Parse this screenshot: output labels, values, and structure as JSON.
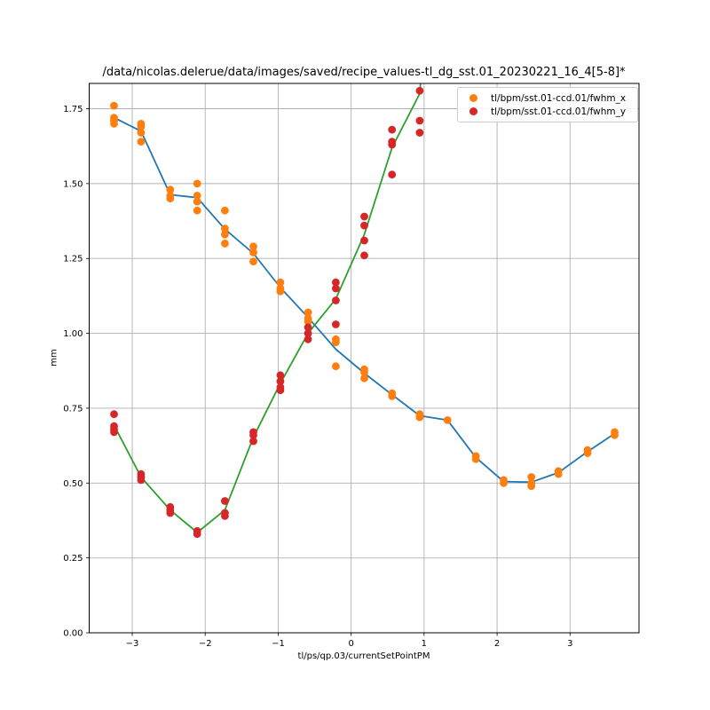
{
  "title": "/data/nicolas.delerue/data/images/saved/recipe_values-tl_dg_sst.01_20230221_16_4[5-8]*",
  "legend": {
    "items": [
      {
        "label": "tl/bpm/sst.01-ccd.01/fwhm_x",
        "color": "#ff7f0e"
      },
      {
        "label": "tl/bpm/sst.01-ccd.01/fwhm_y",
        "color": "#d62728"
      }
    ]
  },
  "colors": {
    "fwhm_x_marker": "#ff7f0e",
    "fwhm_y_marker": "#d62728",
    "fwhm_x_mean_line": "#1f77b4",
    "fwhm_y_mean_line": "#2ca02c",
    "gridline": "#b0b0b0",
    "spine": "#000000"
  },
  "chart_data": {
    "type": "scatter",
    "title": "/data/nicolas.delerue/data/images/saved/recipe_values-tl_dg_sst.01_20230221_16_4[5-8]*",
    "xlabel": "tl/ps/qp.03/currentSetPointPM",
    "ylabel": "mm",
    "xlim": [
      -3.59,
      3.945
    ],
    "ylim": [
      0,
      1.8345
    ],
    "grid": true,
    "legend_position": "upper right",
    "x_ticks": [
      {
        "v": -3,
        "label": "−3"
      },
      {
        "v": -2,
        "label": "−2"
      },
      {
        "v": -1,
        "label": "−1"
      },
      {
        "v": 0,
        "label": "0"
      },
      {
        "v": 1,
        "label": "1"
      },
      {
        "v": 2,
        "label": "2"
      },
      {
        "v": 3,
        "label": "3"
      }
    ],
    "y_ticks": [
      {
        "v": 0.0,
        "label": "0.00"
      },
      {
        "v": 0.25,
        "label": "0.25"
      },
      {
        "v": 0.5,
        "label": "0.50"
      },
      {
        "v": 0.75,
        "label": "0.75"
      },
      {
        "v": 1.0,
        "label": "1.00"
      },
      {
        "v": 1.25,
        "label": "1.25"
      },
      {
        "v": 1.5,
        "label": "1.50"
      },
      {
        "v": 1.75,
        "label": "1.75"
      }
    ],
    "series": [
      {
        "key": "fwhm-x-mean-line",
        "name": "fwhm_x mean line",
        "type": "line",
        "color": "#1f77b4",
        "points": [
          [
            -3.25,
            1.72
          ],
          [
            -2.88,
            1.675
          ],
          [
            -2.48,
            1.463
          ],
          [
            -2.11,
            1.453
          ],
          [
            -1.73,
            1.348
          ],
          [
            -1.34,
            1.267
          ],
          [
            -0.97,
            1.153
          ],
          [
            -0.59,
            1.053
          ],
          [
            -0.21,
            0.947
          ],
          [
            0.18,
            0.867
          ],
          [
            0.56,
            0.795
          ],
          [
            0.94,
            0.725
          ],
          [
            1.32,
            0.71
          ],
          [
            1.71,
            0.585
          ],
          [
            2.09,
            0.505
          ],
          [
            2.47,
            0.503
          ],
          [
            2.84,
            0.535
          ],
          [
            3.24,
            0.605
          ],
          [
            3.61,
            0.665
          ]
        ]
      },
      {
        "key": "fwhm-y-mean-line",
        "name": "fwhm_y mean line",
        "type": "line",
        "color": "#2ca02c",
        "points": [
          [
            -3.25,
            0.693
          ],
          [
            -2.88,
            0.52
          ],
          [
            -2.48,
            0.41
          ],
          [
            -2.11,
            0.335
          ],
          [
            -1.73,
            0.41
          ],
          [
            -1.34,
            0.653
          ],
          [
            -0.97,
            0.833
          ],
          [
            -0.59,
            1.0
          ],
          [
            -0.21,
            1.115
          ],
          [
            0.18,
            1.33
          ],
          [
            0.56,
            1.62
          ],
          [
            0.94,
            1.8
          ],
          [
            1.32,
            2.97
          ]
        ]
      },
      {
        "key": "fwhm-x-points",
        "name": "tl/bpm/sst.01-ccd.01/fwhm_x",
        "type": "scatter",
        "color": "#ff7f0e",
        "points": [
          [
            -3.25,
            1.76
          ],
          [
            -3.25,
            1.72
          ],
          [
            -3.25,
            1.71
          ],
          [
            -3.25,
            1.7
          ],
          [
            -2.88,
            1.7
          ],
          [
            -2.88,
            1.69
          ],
          [
            -2.88,
            1.67
          ],
          [
            -2.88,
            1.64
          ],
          [
            -2.48,
            1.48
          ],
          [
            -2.48,
            1.46
          ],
          [
            -2.48,
            1.45
          ],
          [
            -2.11,
            1.5
          ],
          [
            -2.11,
            1.46
          ],
          [
            -2.11,
            1.44
          ],
          [
            -2.11,
            1.41
          ],
          [
            -1.73,
            1.41
          ],
          [
            -1.73,
            1.35
          ],
          [
            -1.73,
            1.33
          ],
          [
            -1.73,
            1.3
          ],
          [
            -1.34,
            1.29
          ],
          [
            -1.34,
            1.27
          ],
          [
            -1.34,
            1.24
          ],
          [
            -0.97,
            1.17
          ],
          [
            -0.97,
            1.15
          ],
          [
            -0.97,
            1.14
          ],
          [
            -0.59,
            1.07
          ],
          [
            -0.59,
            1.05
          ],
          [
            -0.59,
            1.04
          ],
          [
            -0.21,
            0.98
          ],
          [
            -0.21,
            0.97
          ],
          [
            -0.21,
            0.89
          ],
          [
            0.18,
            0.88
          ],
          [
            0.18,
            0.87
          ],
          [
            0.18,
            0.85
          ],
          [
            0.56,
            0.8
          ],
          [
            0.56,
            0.79
          ],
          [
            0.94,
            0.73
          ],
          [
            0.94,
            0.72
          ],
          [
            1.32,
            0.71
          ],
          [
            1.71,
            0.59
          ],
          [
            1.71,
            0.58
          ],
          [
            2.09,
            0.51
          ],
          [
            2.09,
            0.5
          ],
          [
            2.47,
            0.52
          ],
          [
            2.47,
            0.5
          ],
          [
            2.47,
            0.49
          ],
          [
            2.84,
            0.54
          ],
          [
            2.84,
            0.53
          ],
          [
            3.24,
            0.61
          ],
          [
            3.24,
            0.6
          ],
          [
            3.61,
            0.67
          ],
          [
            3.61,
            0.66
          ]
        ]
      },
      {
        "key": "fwhm-y-points",
        "name": "tl/bpm/sst.01-ccd.01/fwhm_y",
        "type": "scatter",
        "color": "#d62728",
        "points": [
          [
            -3.25,
            0.73
          ],
          [
            -3.25,
            0.69
          ],
          [
            -3.25,
            0.68
          ],
          [
            -3.25,
            0.67
          ],
          [
            -2.88,
            0.53
          ],
          [
            -2.88,
            0.52
          ],
          [
            -2.88,
            0.51
          ],
          [
            -2.48,
            0.42
          ],
          [
            -2.48,
            0.41
          ],
          [
            -2.48,
            0.4
          ],
          [
            -2.11,
            0.34
          ],
          [
            -2.11,
            0.33
          ],
          [
            -1.73,
            0.44
          ],
          [
            -1.73,
            0.4
          ],
          [
            -1.73,
            0.39
          ],
          [
            -1.34,
            0.67
          ],
          [
            -1.34,
            0.66
          ],
          [
            -1.34,
            0.64
          ],
          [
            -0.97,
            0.86
          ],
          [
            -0.97,
            0.84
          ],
          [
            -0.97,
            0.82
          ],
          [
            -0.97,
            0.81
          ],
          [
            -0.59,
            1.02
          ],
          [
            -0.59,
            1.0
          ],
          [
            -0.59,
            0.98
          ],
          [
            -0.21,
            1.17
          ],
          [
            -0.21,
            1.15
          ],
          [
            -0.21,
            1.11
          ],
          [
            -0.21,
            1.03
          ],
          [
            0.18,
            1.39
          ],
          [
            0.18,
            1.36
          ],
          [
            0.18,
            1.31
          ],
          [
            0.18,
            1.26
          ],
          [
            0.56,
            1.68
          ],
          [
            0.56,
            1.64
          ],
          [
            0.56,
            1.63
          ],
          [
            0.56,
            1.53
          ],
          [
            0.94,
            1.81
          ],
          [
            0.94,
            1.71
          ],
          [
            0.94,
            1.67
          ]
        ]
      }
    ]
  }
}
